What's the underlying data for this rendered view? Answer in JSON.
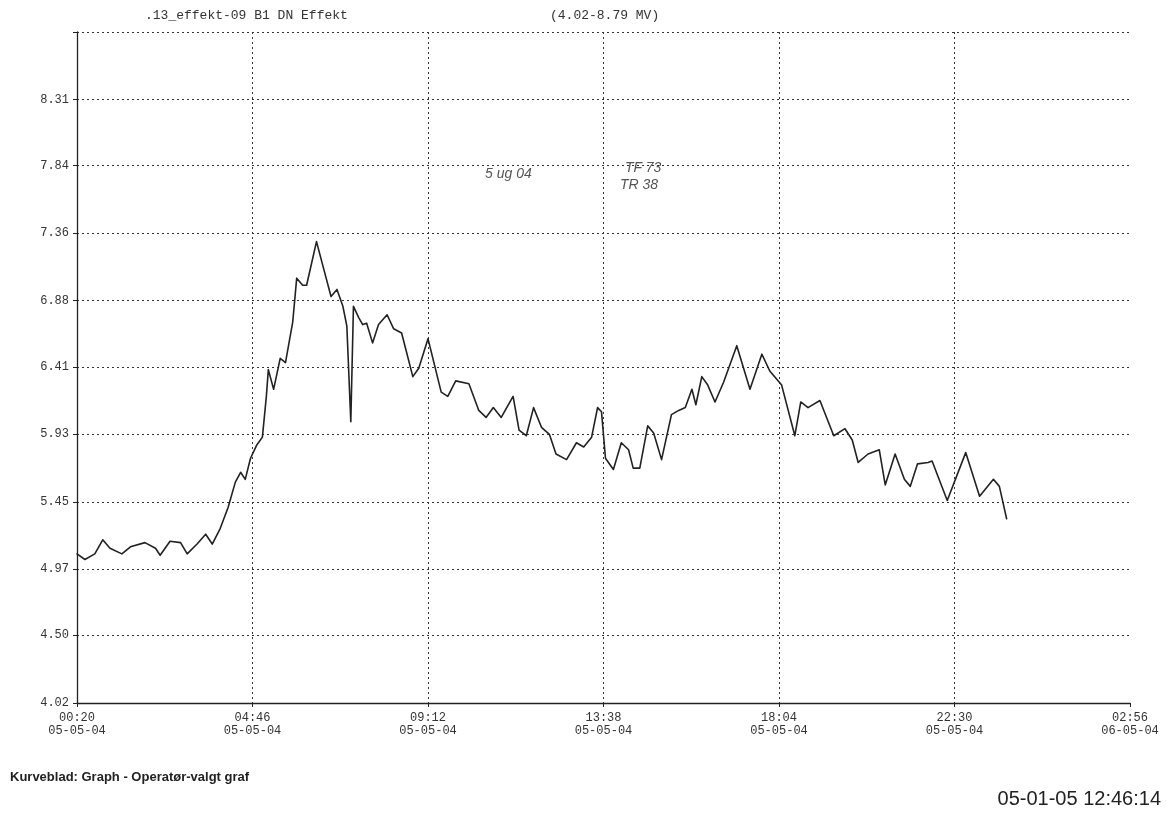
{
  "chart_data": {
    "type": "line",
    "title": ".13_effekt-09 B1 DN Effekt",
    "subtitle": "(4.02-8.79 MV)",
    "annotations": [
      "5 ug 04",
      "TF 73",
      "TR 38",
      "Kurveblad: Graph - Operatør-valgt graf",
      "05-01-05 12:46:14"
    ],
    "xlim": [
      "--05-05T00:20",
      "--05-06T02:56"
    ],
    "xticks": [
      {
        "value": "--05-05T00:20",
        "label": "00:20\n05-05-04"
      },
      {
        "value": "--05-05T04:46",
        "label": "04:46\n05-05-04"
      },
      {
        "value": "--05-05T09:12",
        "label": "09:12\n05-05-04"
      },
      {
        "value": "--05-05T13:38",
        "label": "13:38\n05-05-04"
      },
      {
        "value": "--05-05T18:04",
        "label": "18:04\n05-05-04"
      },
      {
        "value": "--05-05T22:30",
        "label": "22:30\n05-05-04"
      },
      {
        "value": "--05-06T02:56",
        "label": "02:56\n06-05-04"
      }
    ],
    "ylim": [
      4.02,
      8.79
    ],
    "yticks": [
      4.02,
      {
        "value": 4.5,
        "label": "4.50"
      },
      4.97,
      5.45,
      5.93,
      6.41,
      6.88,
      7.36,
      7.84,
      8.31,
      {
        "value": 8.79,
        "label": null
      }
    ],
    "grid": true,
    "marker": "none",
    "line_style": "solid",
    "series": [
      {
        "color": "#222222",
        "x": [
          "--05-05T00:20",
          "--05-05T00:32",
          "--05-05T00:47",
          "--05-05T00:59",
          "--05-05T01:10",
          "--05-05T01:28",
          "--05-05T01:41",
          "--05-05T02:03",
          "--05-05T02:19",
          "--05-05T02:26",
          "--05-05T02:41",
          "--05-05T02:57",
          "--05-05T03:07",
          "--05-05T03:22",
          "--05-05T03:35",
          "--05-05T03:45",
          "--05-05T03:57",
          "--05-05T04:09",
          "--05-05T04:20",
          "--05-05T04:28",
          "--05-05T04:35",
          "--05-05T04:43",
          "--05-05T04:52",
          "--05-05T05:01",
          "--05-05T05:07",
          "--05-05T05:10",
          "--05-05T05:18",
          "--05-05T05:28",
          "--05-05T05:36",
          "--05-05T05:47",
          "--05-05T05:53",
          "--05-05T06:02",
          "--05-05T06:08",
          "--05-05T06:23",
          "--05-05T06:32",
          "--05-05T06:45",
          "--05-05T06:54",
          "--05-05T07:03",
          "--05-05T07:09",
          "--05-05T07:15",
          "--05-05T07:19",
          "--05-05T07:27",
          "--05-05T07:33",
          "--05-05T07:39",
          "--05-05T07:48",
          "--05-05T07:57",
          "--05-05T08:10",
          "--05-05T08:20",
          "--05-05T08:32",
          "--05-05T08:49",
          "--05-05T08:58",
          "--05-05T09:12",
          "--05-05T09:32",
          "--05-05T09:42",
          "--05-05T09:54",
          "--05-05T10:14",
          "--05-05T10:29",
          "--05-05T10:40",
          "--05-05T10:51",
          "--05-05T11:03",
          "--05-05T11:21",
          "--05-05T11:30",
          "--05-05T11:41",
          "--05-05T11:52",
          "--05-05T12:04",
          "--05-05T12:16",
          "--05-05T12:26",
          "--05-05T12:42",
          "--05-05T12:57",
          "--05-05T13:08",
          "--05-05T13:20",
          "--05-05T13:29",
          "--05-05T13:35",
          "--05-05T13:41",
          "--05-05T13:53",
          "--05-05T14:05",
          "--05-05T14:16",
          "--05-05T14:23",
          "--05-05T14:33",
          "--05-05T14:45",
          "--05-05T14:54",
          "--05-05T15:06",
          "--05-05T15:21",
          "--05-05T15:32",
          "--05-05T15:42",
          "--05-05T15:52",
          "--05-05T15:58",
          "--05-05T16:07",
          "--05-05T16:16",
          "--05-05T16:27",
          "--05-05T16:40",
          "--05-05T17:00",
          "--05-05T17:20",
          "--05-05T17:38",
          "--05-05T17:50",
          "--05-05T18:08",
          "--05-05T18:28",
          "--05-05T18:37",
          "--05-05T18:48",
          "--05-05T19:06",
          "--05-05T19:27",
          "--05-05T19:44",
          "--05-05T19:55",
          "--05-05T20:04",
          "--05-05T20:19",
          "--05-05T20:36",
          "--05-05T20:45",
          "--05-05T21:00",
          "--05-05T21:14",
          "--05-05T21:23",
          "--05-05T21:34",
          "--05-05T21:50",
          "--05-05T21:56",
          "--05-05T22:19",
          "--05-05T22:47",
          "--05-05T23:08",
          "--05-05T23:29",
          "--05-05T23:38",
          "--05-05T23:49"
        ],
        "values": [
          5.08,
          5.04,
          5.08,
          5.18,
          5.12,
          5.08,
          5.13,
          5.16,
          5.12,
          5.07,
          5.17,
          5.16,
          5.08,
          5.15,
          5.22,
          5.15,
          5.26,
          5.41,
          5.59,
          5.66,
          5.61,
          5.76,
          5.85,
          5.91,
          6.2,
          6.39,
          6.25,
          6.47,
          6.44,
          6.73,
          7.04,
          6.99,
          6.99,
          7.3,
          7.14,
          6.91,
          6.96,
          6.84,
          6.7,
          6.02,
          6.84,
          6.76,
          6.71,
          6.72,
          6.58,
          6.71,
          6.78,
          6.68,
          6.65,
          6.34,
          6.4,
          6.61,
          6.23,
          6.2,
          6.31,
          6.29,
          6.1,
          6.05,
          6.12,
          6.05,
          6.2,
          5.96,
          5.92,
          6.12,
          5.98,
          5.93,
          5.79,
          5.75,
          5.87,
          5.84,
          5.91,
          6.12,
          6.09,
          5.76,
          5.68,
          5.87,
          5.82,
          5.69,
          5.69,
          5.99,
          5.94,
          5.75,
          6.07,
          6.1,
          6.12,
          6.25,
          6.14,
          6.34,
          6.28,
          6.16,
          6.3,
          6.56,
          6.25,
          6.5,
          6.38,
          6.28,
          5.92,
          6.16,
          6.12,
          6.17,
          5.92,
          5.97,
          5.89,
          5.73,
          5.79,
          5.82,
          5.57,
          5.79,
          5.61,
          5.56,
          5.72,
          5.73,
          5.74,
          5.46,
          5.8,
          5.49,
          5.61,
          5.56,
          5.33
        ]
      }
    ]
  }
}
